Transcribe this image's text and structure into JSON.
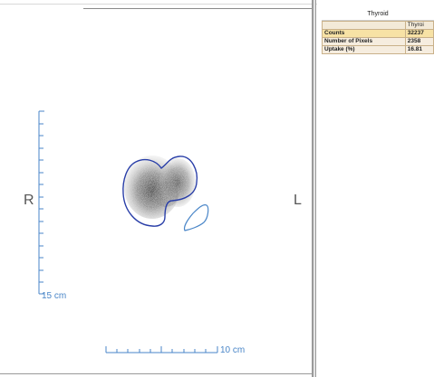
{
  "viewer": {
    "orientation_right": "R",
    "orientation_left": "L",
    "vertical_scale_label": "15 cm",
    "horizontal_scale_label": "10 cm"
  },
  "panel": {
    "title": "Thyroid",
    "column_header": "Thyroi",
    "rows": [
      {
        "label": "Counts",
        "value": "32237"
      },
      {
        "label": "Number of Pixels",
        "value": "2358"
      },
      {
        "label": "Uptake (%)",
        "value": "16.81"
      }
    ]
  },
  "colors": {
    "roi_outline": "#2a3fa8",
    "background_roi": "#4a86c8",
    "scale_bar": "#4a86c8",
    "highlight_row": "#f7e2a5"
  }
}
